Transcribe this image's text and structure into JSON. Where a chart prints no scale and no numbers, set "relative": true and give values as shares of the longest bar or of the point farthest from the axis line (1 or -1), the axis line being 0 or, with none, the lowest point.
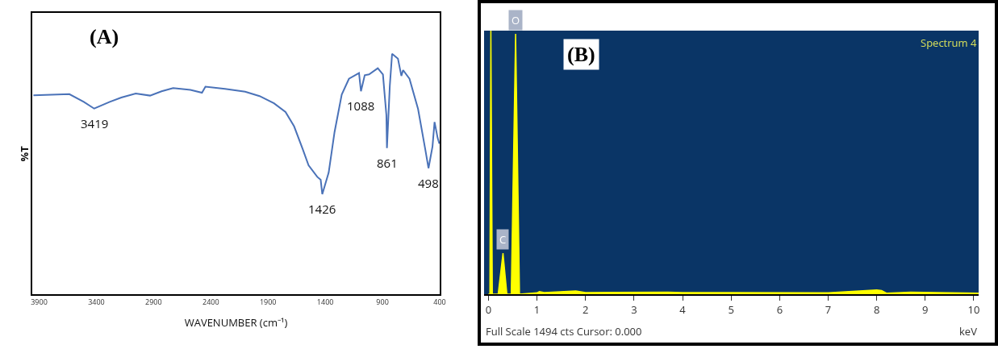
{
  "chart_data": [
    {
      "type": "line",
      "title": "(A)",
      "xlabel": "WAVENUMBER (cm⁻¹)",
      "ylabel": "%T",
      "relative": true,
      "xlim": [
        3960,
        400
      ],
      "xticks": [
        3900,
        3400,
        2900,
        2400,
        1900,
        1400,
        900,
        400
      ],
      "x": [
        3950,
        3636,
        3510,
        3419,
        3283,
        3182,
        3056,
        2931,
        2830,
        2729,
        2578,
        2477,
        2447,
        2276,
        2100,
        1974,
        1848,
        1747,
        1672,
        1596,
        1546,
        1470,
        1440,
        1426,
        1370,
        1319,
        1256,
        1193,
        1105,
        1088,
        1055,
        1017,
        941,
        896,
        866,
        861,
        836,
        816,
        765,
        735,
        720,
        664,
        589,
        526,
        498,
        463,
        445,
        418,
        403
      ],
      "series": [
        {
          "color": "#4a72b8",
          "values": [
            0.827,
            0.832,
            0.8,
            0.772,
            0.8,
            0.818,
            0.835,
            0.826,
            0.844,
            0.857,
            0.85,
            0.838,
            0.863,
            0.854,
            0.842,
            0.824,
            0.794,
            0.758,
            0.698,
            0.602,
            0.536,
            0.488,
            0.476,
            0.416,
            0.506,
            0.674,
            0.83,
            0.896,
            0.92,
            0.844,
            0.911,
            0.914,
            0.94,
            0.914,
            0.746,
            0.608,
            0.866,
            1.0,
            0.98,
            0.908,
            0.932,
            0.896,
            0.77,
            0.602,
            0.524,
            0.614,
            0.716,
            0.65,
            0.626
          ]
        }
      ],
      "annotations": [
        {
          "text": "3419",
          "x": 3419,
          "y": 0.772
        },
        {
          "text": "1426",
          "x": 1426,
          "y": 0.416
        },
        {
          "text": "1088",
          "x": 1088,
          "y": 0.844
        },
        {
          "text": "861",
          "x": 861,
          "y": 0.608
        },
        {
          "text": "498",
          "x": 498,
          "y": 0.524
        }
      ]
    },
    {
      "type": "area",
      "title": "(B)",
      "xlabel": "keV",
      "relative": true,
      "xlim": [
        -0.09,
        10.1
      ],
      "xticks": [
        0,
        1,
        2,
        3,
        4,
        5,
        6,
        7,
        8,
        9,
        10
      ],
      "x": [
        0,
        0.03,
        0.05,
        0.08,
        0.2,
        0.3,
        0.38,
        0.47,
        0.56,
        0.64,
        1.0,
        1.05,
        1.15,
        1.8,
        2.0,
        3.7,
        4.0,
        5.0,
        7.0,
        8.0,
        8.1,
        8.2,
        8.7,
        10.1
      ],
      "series": [
        {
          "color": "#ffff00",
          "values": [
            0,
            0,
            1,
            0,
            0,
            0.156,
            0,
            0,
            0.988,
            0,
            0.005,
            0.01,
            0.006,
            0.012,
            0.006,
            0.008,
            0.006,
            0.006,
            0.005,
            0.016,
            0.014,
            0.004,
            0.008,
            0.004
          ]
        }
      ],
      "annotations": [
        {
          "text": "O",
          "x": 0.56,
          "y": 0.988
        },
        {
          "text": "C",
          "x": 0.3,
          "y": 0.156
        },
        "Spectrum 4",
        "Full Scale 1494 cts Cursor: 0.000"
      ]
    }
  ]
}
